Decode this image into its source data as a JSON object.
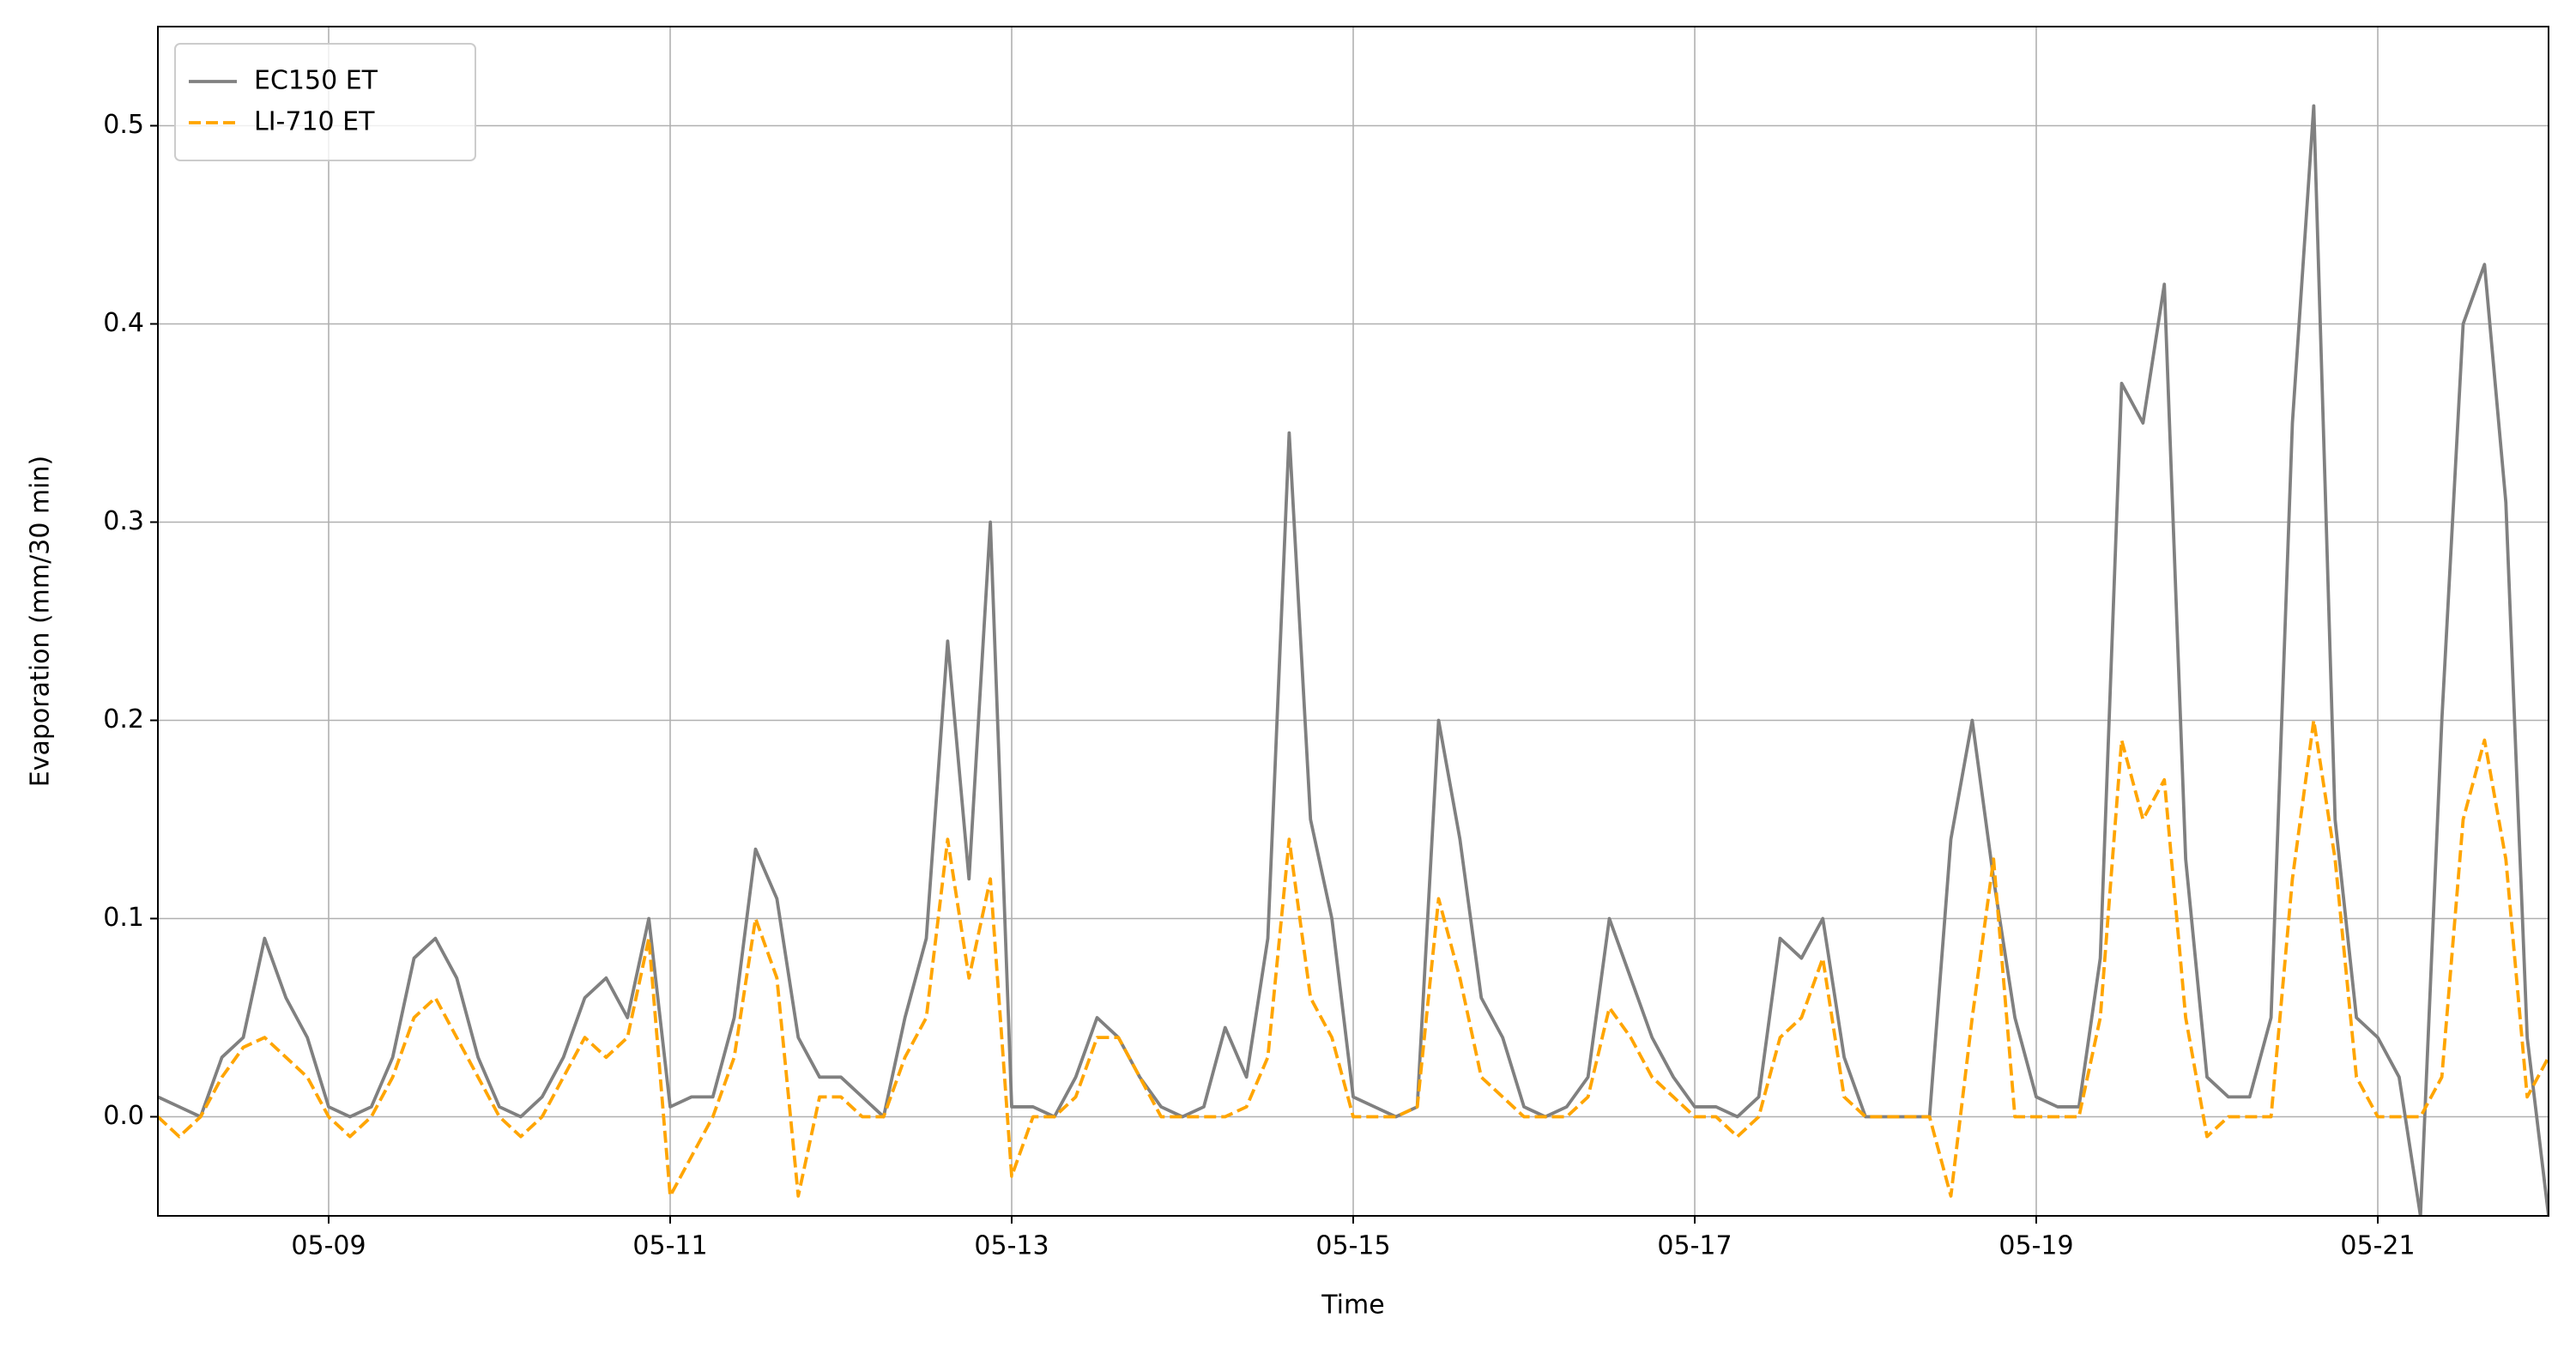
{
  "chart_data": {
    "type": "line",
    "xlabel": "Time",
    "ylabel": "Evaporation (mm/30 min)",
    "x": [
      8,
      8.125,
      8.25,
      8.375,
      8.5,
      8.625,
      8.75,
      8.875,
      9,
      9.125,
      9.25,
      9.375,
      9.5,
      9.625,
      9.75,
      9.875,
      10,
      10.125,
      10.25,
      10.375,
      10.5,
      10.625,
      10.75,
      10.875,
      11,
      11.125,
      11.25,
      11.375,
      11.5,
      11.625,
      11.75,
      11.875,
      12,
      12.125,
      12.25,
      12.375,
      12.5,
      12.625,
      12.75,
      12.875,
      13,
      13.125,
      13.25,
      13.375,
      13.5,
      13.625,
      13.75,
      13.875,
      14,
      14.125,
      14.25,
      14.375,
      14.5,
      14.625,
      14.75,
      14.875,
      15,
      15.125,
      15.25,
      15.375,
      15.5,
      15.625,
      15.75,
      15.875,
      16,
      16.125,
      16.25,
      16.375,
      16.5,
      16.625,
      16.75,
      16.875,
      17,
      17.125,
      17.25,
      17.375,
      17.5,
      17.625,
      17.75,
      17.875,
      18,
      18.125,
      18.25,
      18.375,
      18.5,
      18.625,
      18.75,
      18.875,
      19,
      19.125,
      19.25,
      19.375,
      19.5,
      19.625,
      19.75,
      19.875,
      20,
      20.125,
      20.25,
      20.375,
      20.5,
      20.625,
      20.75,
      20.875,
      21,
      21.125,
      21.25,
      21.375,
      21.5,
      21.625,
      21.75,
      21.875,
      22
    ],
    "series": [
      {
        "name": "EC150 ET",
        "color": "#808080",
        "dash": "solid",
        "values": [
          0.01,
          0.005,
          0.0,
          0.03,
          0.04,
          0.09,
          0.06,
          0.04,
          0.005,
          0.0,
          0.005,
          0.03,
          0.08,
          0.09,
          0.07,
          0.03,
          0.005,
          0.0,
          0.01,
          0.03,
          0.06,
          0.07,
          0.05,
          0.1,
          0.005,
          0.01,
          0.01,
          0.05,
          0.135,
          0.11,
          0.04,
          0.02,
          0.02,
          0.01,
          0.0,
          0.05,
          0.09,
          0.24,
          0.12,
          0.3,
          0.005,
          0.005,
          0.0,
          0.02,
          0.05,
          0.04,
          0.02,
          0.005,
          0.0,
          0.005,
          0.045,
          0.02,
          0.09,
          0.345,
          0.15,
          0.1,
          0.01,
          0.005,
          0.0,
          0.005,
          0.2,
          0.14,
          0.06,
          0.04,
          0.005,
          0.0,
          0.005,
          0.02,
          0.1,
          0.07,
          0.04,
          0.02,
          0.005,
          0.005,
          0.0,
          0.01,
          0.09,
          0.08,
          0.1,
          0.03,
          0.0,
          0.0,
          0.0,
          0.0,
          0.14,
          0.2,
          0.12,
          0.05,
          0.01,
          0.005,
          0.005,
          0.08,
          0.37,
          0.35,
          0.42,
          0.13,
          0.02,
          0.01,
          0.01,
          0.05,
          0.35,
          0.51,
          0.15,
          0.05,
          0.04,
          0.02,
          -0.05,
          0.2,
          0.4,
          0.43,
          0.31,
          0.04,
          -0.05
        ]
      },
      {
        "name": "LI-710 ET",
        "color": "#ffa500",
        "dash": "dashed",
        "values": [
          0.0,
          -0.01,
          0.0,
          0.02,
          0.035,
          0.04,
          0.03,
          0.02,
          0.0,
          -0.01,
          0.0,
          0.02,
          0.05,
          0.06,
          0.04,
          0.02,
          0.0,
          -0.01,
          0.0,
          0.02,
          0.04,
          0.03,
          0.04,
          0.09,
          -0.04,
          -0.02,
          0.0,
          0.03,
          0.1,
          0.07,
          -0.04,
          0.01,
          0.01,
          0.0,
          0.0,
          0.03,
          0.05,
          0.14,
          0.07,
          0.12,
          -0.03,
          0.0,
          0.0,
          0.01,
          0.04,
          0.04,
          0.02,
          0.0,
          0.0,
          0.0,
          0.0,
          0.005,
          0.03,
          0.14,
          0.06,
          0.04,
          0.0,
          0.0,
          0.0,
          0.005,
          0.11,
          0.07,
          0.02,
          0.01,
          0.0,
          0.0,
          0.0,
          0.01,
          0.055,
          0.04,
          0.02,
          0.01,
          0.0,
          0.0,
          -0.01,
          0.0,
          0.04,
          0.05,
          0.08,
          0.01,
          0.0,
          0.0,
          0.0,
          0.0,
          -0.04,
          0.05,
          0.13,
          0.0,
          0.0,
          0.0,
          0.0,
          0.05,
          0.19,
          0.15,
          0.17,
          0.05,
          -0.01,
          0.0,
          0.0,
          0.0,
          0.12,
          0.2,
          0.13,
          0.02,
          0.0,
          0.0,
          0.0,
          0.02,
          0.15,
          0.19,
          0.13,
          0.01,
          0.03
        ]
      }
    ],
    "xlim": [
      8,
      22
    ],
    "xticks": [
      {
        "value": 9,
        "label": "05-09"
      },
      {
        "value": 11,
        "label": "05-11"
      },
      {
        "value": 13,
        "label": "05-13"
      },
      {
        "value": 15,
        "label": "05-15"
      },
      {
        "value": 17,
        "label": "05-17"
      },
      {
        "value": 19,
        "label": "05-19"
      },
      {
        "value": 21,
        "label": "05-21"
      }
    ],
    "ylim": [
      -0.05,
      0.55
    ],
    "yticks": [
      {
        "value": 0,
        "label": "0.0"
      },
      0.1,
      0.2,
      0.3,
      0.4,
      0.5
    ],
    "grid": true,
    "legend": "upper-left"
  }
}
